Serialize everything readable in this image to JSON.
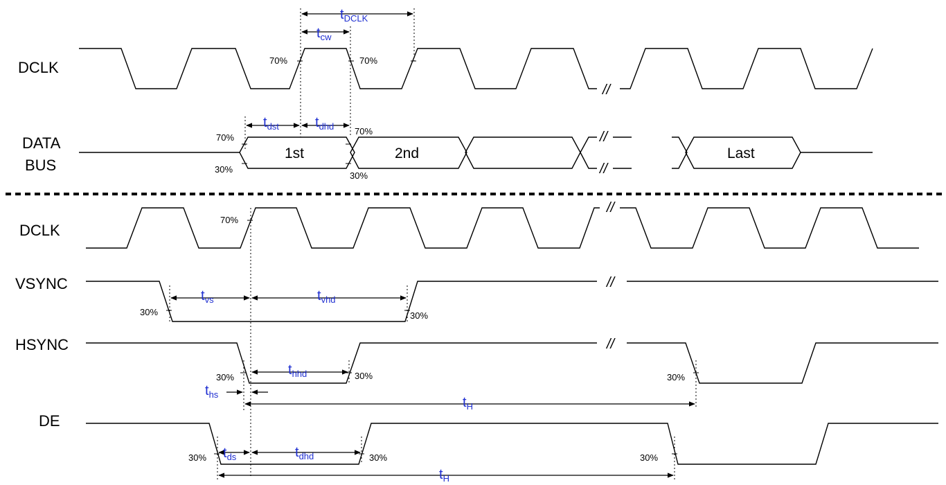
{
  "signals": {
    "top_dclk": "DCLK",
    "data_bus_line1": "DATA",
    "data_bus_line2": "BUS",
    "bottom_dclk": "DCLK",
    "vsync": "VSYNC",
    "hsync": "HSYNC",
    "de": "DE"
  },
  "data_cells": [
    "1st",
    "2nd",
    "Last"
  ],
  "thresholds": {
    "high": "70%",
    "low": "30%"
  },
  "timing": {
    "tdclk": {
      "main": "t",
      "sub": "DCLK"
    },
    "tcw": {
      "main": "t",
      "sub": "cw"
    },
    "tdst": {
      "main": "t",
      "sub": "dst"
    },
    "tdhd": {
      "main": "t",
      "sub": "dhd"
    },
    "tvs": {
      "main": "t",
      "sub": "vs"
    },
    "tvhd": {
      "main": "t",
      "sub": "vhd"
    },
    "thhd": {
      "main": "t",
      "sub": "hhd"
    },
    "ths": {
      "main": "t",
      "sub": "hs"
    },
    "th_hsync": {
      "main": "t",
      "sub": "H"
    },
    "tds": {
      "main": "t",
      "sub": "ds"
    },
    "tdhd_de": {
      "main": "t",
      "sub": "dhd"
    },
    "th_de": {
      "main": "t",
      "sub": "H"
    }
  },
  "break_mark": "//",
  "colors": {
    "label": "#1f2fd1",
    "line": "#000000",
    "background": "#ffffff"
  }
}
